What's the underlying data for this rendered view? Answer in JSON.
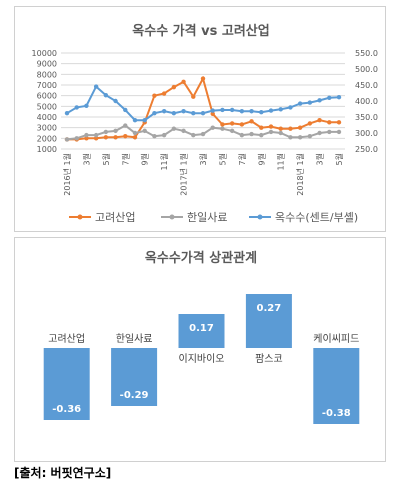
{
  "chart_data": [
    {
      "type": "line",
      "title": "옥수수 가격 vs 고려산업",
      "x": [
        "2016년 1월",
        "",
        "3월",
        "",
        "5월",
        "",
        "7월",
        "",
        "9월",
        "",
        "11월",
        "",
        "2017년 1월",
        "",
        "3월",
        "",
        "5월",
        "",
        "7월",
        "",
        "9월",
        "",
        "11월",
        "",
        "2018년 1월",
        "",
        "3월",
        "",
        "5월"
      ],
      "ylim_left": [
        1000,
        10000
      ],
      "yticks_left": [
        "1000",
        "2000",
        "3000",
        "4000",
        "5000",
        "6000",
        "7000",
        "8000",
        "9000",
        "10000"
      ],
      "ylim_right": [
        250.0,
        550.0
      ],
      "yticks_right": [
        "250.0",
        "300.0",
        "350.0",
        "400.0",
        "450.0",
        "500.0",
        "550.0"
      ],
      "grid": true,
      "legend": "bottom",
      "series": [
        {
          "name": "고려산업",
          "axis": "left",
          "color": "#ED7D31",
          "values": [
            1900,
            1900,
            2000,
            2000,
            2100,
            2100,
            2200,
            2100,
            3500,
            6000,
            6200,
            6800,
            7300,
            5900,
            7600,
            4300,
            3300,
            3400,
            3300,
            3600,
            3000,
            3100,
            2900,
            2900,
            3000,
            3400,
            3700,
            3500,
            3500
          ]
        },
        {
          "name": "한일사료",
          "axis": "left",
          "color": "#A5A5A5",
          "values": [
            1900,
            2000,
            2300,
            2300,
            2600,
            2700,
            3200,
            2500,
            2700,
            2200,
            2300,
            2900,
            2700,
            2300,
            2400,
            3000,
            2900,
            2700,
            2300,
            2400,
            2300,
            2600,
            2500,
            2100,
            2100,
            2200,
            2500,
            2600,
            2600
          ]
        },
        {
          "name": "옥수수(센트/부셸)",
          "axis": "right",
          "color": "#5B9BD5",
          "values": [
            362,
            380,
            385,
            445,
            418,
            400,
            372,
            340,
            340,
            362,
            368,
            362,
            368,
            362,
            362,
            370,
            372,
            372,
            368,
            368,
            365,
            370,
            374,
            380,
            392,
            395,
            402,
            410,
            412
          ]
        }
      ]
    },
    {
      "type": "bar",
      "title": "옥수수가격 상관관계",
      "categories": [
        "고려산업",
        "한일사료",
        "이지바이오",
        "팜스코",
        "케이씨피드"
      ],
      "values": [
        -0.36,
        -0.29,
        0.17,
        0.27,
        -0.38
      ],
      "value_labels": [
        "-0.36",
        "-0.29",
        "0.17",
        "0.27",
        "-0.38"
      ],
      "ylim": [
        -0.5,
        0.35
      ],
      "color": "#5B9BD5"
    }
  ],
  "source": "[출처: 버핏연구소]"
}
